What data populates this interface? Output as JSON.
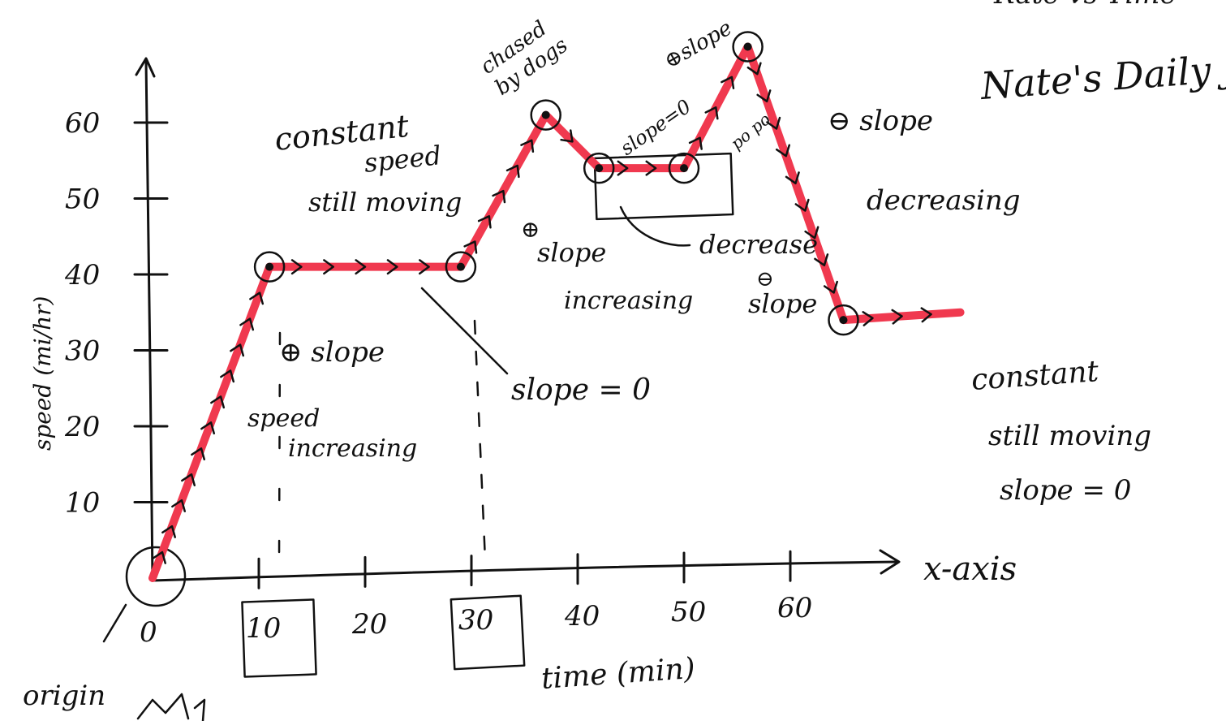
{
  "chart_data": {
    "type": "line",
    "title": "Nate's Daily Jog",
    "title_fragment": "Rate vs Time",
    "xlabel": "time (min)",
    "x_axis_name": "x-axis",
    "ylabel": "speed (mi/hr)",
    "xlim": [
      0,
      72
    ],
    "ylim": [
      0,
      70
    ],
    "x_ticks": [
      "0",
      "10",
      "20",
      "30",
      "40",
      "50",
      "60"
    ],
    "y_ticks": [
      "10",
      "20",
      "30",
      "40",
      "50",
      "60"
    ],
    "boxed_x_ticks": [
      "10",
      "30"
    ],
    "grid": false,
    "colors": {
      "line": "#f0394f",
      "ink": "#111111"
    },
    "series": [
      {
        "x": [
          0,
          11,
          29,
          37,
          42,
          50,
          56,
          65,
          76
        ],
        "y": [
          0,
          41,
          41,
          61,
          54,
          54,
          70,
          34,
          35
        ]
      }
    ],
    "annotations": {
      "origin": "origin",
      "pos_slope_1": "⊕ slope",
      "speed_increasing_1": "speed",
      "speed_increasing_2": "increasing",
      "constant_1": "constant",
      "constant_2": "speed",
      "still_moving": "still moving",
      "slope_zero_1": "slope = 0",
      "chased_1": "chased",
      "chased_2": "by dogs",
      "pos_slope_2_a": "⊕",
      "pos_slope_2_b": "slope",
      "pos_slope_2_c": "increasing",
      "slope_zero_2": "slope=0",
      "pos_slope_3": "⊕slope",
      "pops": "po po",
      "decrease_1": "decrease",
      "decrease_2": "⊖",
      "decrease_3": "slope",
      "neg_slope": "⊖ slope",
      "decreasing": "decreasing",
      "constant_end_1": "constant",
      "constant_end_2": "still moving",
      "constant_end_3": "slope = 0"
    }
  }
}
